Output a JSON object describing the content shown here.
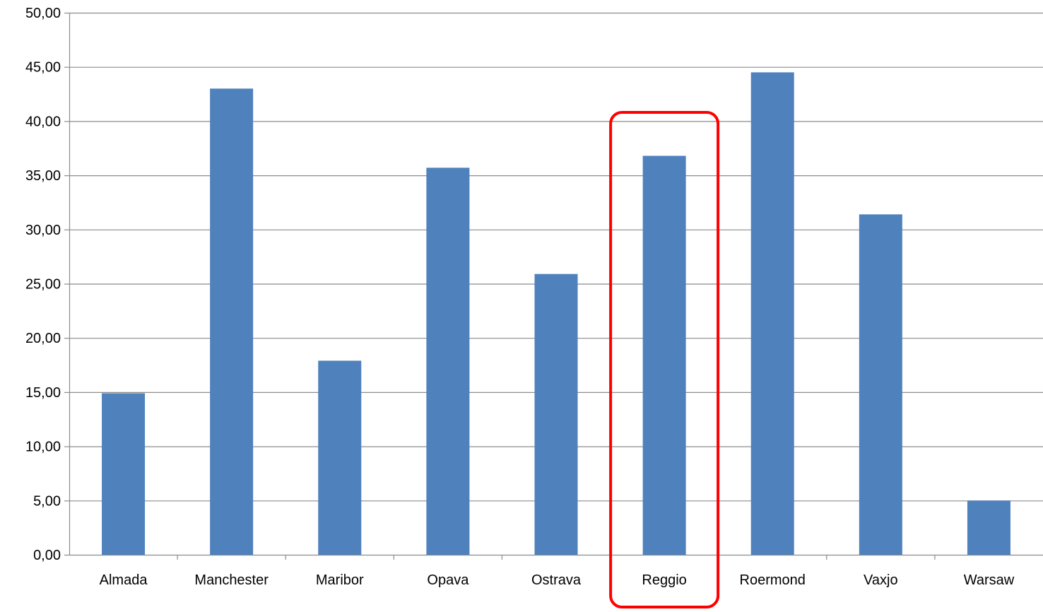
{
  "chart_data": {
    "type": "bar",
    "categories": [
      "Almada",
      "Manchester",
      "Maribor",
      "Opava",
      "Ostrava",
      "Reggio",
      "Roermond",
      "Vaxjo",
      "Warsaw"
    ],
    "values": [
      14.9,
      43.0,
      17.9,
      35.7,
      25.9,
      36.8,
      44.5,
      31.4,
      5.0
    ],
    "ylim": [
      0,
      50
    ],
    "yticks": [
      "0,00",
      "5,00",
      "10,00",
      "15,00",
      "20,00",
      "25,00",
      "30,00",
      "35,00",
      "40,00",
      "45,00",
      "50,00"
    ],
    "ytick_values": [
      0,
      5,
      10,
      15,
      20,
      25,
      30,
      35,
      40,
      45,
      50
    ],
    "grid": true,
    "highlight": {
      "category": "Reggio",
      "style": "rounded-rectangle"
    },
    "colors": {
      "bar": "#4f81bd",
      "highlight": "#ff0000",
      "grid": "#8c8c8c"
    }
  }
}
